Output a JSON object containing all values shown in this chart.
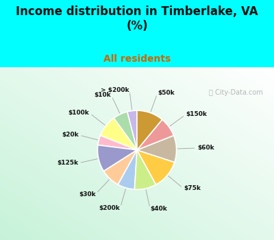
{
  "title": "Income distribution in Timberlake, VA\n(%)",
  "subtitle": "All residents",
  "title_color": "#111111",
  "subtitle_color": "#cc6600",
  "bg_color_top": "#00ffff",
  "labels": [
    "> $200k",
    "$10k",
    "$100k",
    "$20k",
    "$125k",
    "$30k",
    "$200k",
    "$40k",
    "$75k",
    "$60k",
    "$150k",
    "$50k"
  ],
  "values": [
    4,
    6,
    9,
    4,
    11,
    8,
    7,
    9,
    12,
    11,
    8,
    11
  ],
  "colors": [
    "#c8b8e8",
    "#aaddaa",
    "#ffff88",
    "#ffbbcc",
    "#9999cc",
    "#ffcc99",
    "#aaccee",
    "#ccee88",
    "#ffcc44",
    "#c8b8a0",
    "#ee9999",
    "#cc9933"
  ],
  "startangle": 90
}
